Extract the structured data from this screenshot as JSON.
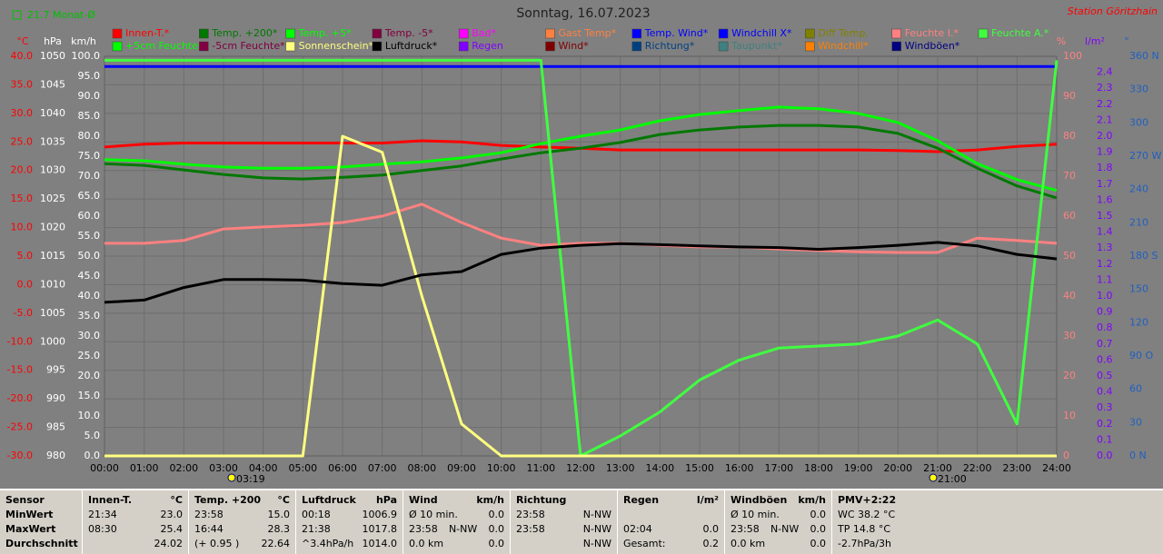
{
  "header": {
    "monthly_avg": "21.7 Monat-Ø",
    "station": "Station Göritzhain"
  },
  "chart_data": {
    "type": "line",
    "title": "Sonntag, 16.07.2023",
    "grid": true,
    "xlim": [
      0,
      24
    ],
    "xticks": [
      {
        "value": 0,
        "label": "00:00"
      },
      {
        "value": 1,
        "label": "01:00"
      },
      {
        "value": 2,
        "label": "02:00"
      },
      {
        "value": 3,
        "label": "03:00"
      },
      {
        "value": 4,
        "label": "04:00"
      },
      {
        "value": 5,
        "label": "05:00"
      },
      {
        "value": 6,
        "label": "06:00"
      },
      {
        "value": 7,
        "label": "07:00"
      },
      {
        "value": 8,
        "label": "08:00"
      },
      {
        "value": 9,
        "label": "09:00"
      },
      {
        "value": 10,
        "label": "10:00"
      },
      {
        "value": 11,
        "label": "11:00"
      },
      {
        "value": 12,
        "label": "12:00"
      },
      {
        "value": 13,
        "label": "13:00"
      },
      {
        "value": 14,
        "label": "14:00"
      },
      {
        "value": 15,
        "label": "15:00"
      },
      {
        "value": 16,
        "label": "16:00"
      },
      {
        "value": 17,
        "label": "17:00"
      },
      {
        "value": 18,
        "label": "18:00"
      },
      {
        "value": 19,
        "label": "19:00"
      },
      {
        "value": 20,
        "label": "20:00"
      },
      {
        "value": 21,
        "label": "21:00"
      },
      {
        "value": 22,
        "label": "22:00"
      },
      {
        "value": 23,
        "label": "23:00"
      },
      {
        "value": 24,
        "label": "24:00"
      }
    ],
    "x": [
      0,
      1,
      2,
      3,
      4,
      5,
      6,
      7,
      8,
      9,
      10,
      11,
      12,
      13,
      14,
      15,
      16,
      17,
      18,
      19,
      20,
      21,
      22,
      23,
      24
    ],
    "axes": [
      {
        "label": "°C",
        "side": "left",
        "color": "#ff0000",
        "lim": [
          -30,
          40
        ],
        "ticks": [
          {
            "value": 40,
            "label": "40.0"
          },
          {
            "value": 35,
            "label": "35.0"
          },
          {
            "value": 30,
            "label": "30.0"
          },
          {
            "value": 25,
            "label": "25.0"
          },
          {
            "value": 20,
            "label": "20.0"
          },
          {
            "value": 15,
            "label": "15.0"
          },
          {
            "value": 10,
            "label": "10.0"
          },
          {
            "value": 5,
            "label": "5.0"
          },
          {
            "value": 0,
            "label": "0.0"
          },
          {
            "value": -5,
            "label": "-5.0"
          },
          {
            "value": -10,
            "label": "-10.0"
          },
          {
            "value": -15,
            "label": "-15.0"
          },
          {
            "value": -20,
            "label": "-20.0"
          },
          {
            "value": -25,
            "label": "-25.0"
          },
          {
            "value": -30,
            "label": "-30.0"
          }
        ]
      },
      {
        "label": "hPa",
        "side": "left",
        "color": "#ffffff",
        "lim": [
          980,
          1050
        ],
        "ticks": [
          1050,
          1045,
          1040,
          1035,
          1030,
          1025,
          1020,
          1015,
          1010,
          1005,
          1000,
          995,
          990,
          985,
          980
        ]
      },
      {
        "label": "km/h",
        "side": "left",
        "color": "#ffffff",
        "lim": [
          0,
          100
        ],
        "ticks": [
          {
            "value": 100,
            "label": "100.0"
          },
          {
            "value": 95,
            "label": "95.0"
          },
          {
            "value": 90,
            "label": "90.0"
          },
          {
            "value": 85,
            "label": "85.0"
          },
          {
            "value": 80,
            "label": "80.0"
          },
          {
            "value": 75,
            "label": "75.0"
          },
          {
            "value": 70,
            "label": "70.0"
          },
          {
            "value": 65,
            "label": "65.0"
          },
          {
            "value": 60,
            "label": "60.0"
          },
          {
            "value": 55,
            "label": "55.0"
          },
          {
            "value": 50,
            "label": "50.0"
          },
          {
            "value": 45,
            "label": "45.0"
          },
          {
            "value": 40,
            "label": "40.0"
          },
          {
            "value": 35,
            "label": "35.0"
          },
          {
            "value": 30,
            "label": "30.0"
          },
          {
            "value": 25,
            "label": "25.0"
          },
          {
            "value": 20,
            "label": "20.0"
          },
          {
            "value": 15,
            "label": "15.0"
          },
          {
            "value": 10,
            "label": "10.0"
          },
          {
            "value": 5,
            "label": "5.0"
          },
          {
            "value": 0,
            "label": "0.0"
          }
        ]
      },
      {
        "label": "%",
        "side": "right",
        "color": "#ff8080",
        "lim": [
          0,
          100
        ],
        "ticks": [
          100,
          90,
          80,
          70,
          60,
          50,
          40,
          30,
          20,
          10,
          0
        ]
      },
      {
        "label": "l/m²",
        "side": "right",
        "color": "#8000ff",
        "lim": [
          0,
          2.5
        ],
        "ticks": [
          2.4,
          2.3,
          2.2,
          2.1,
          {
            "value": 2,
            "label": "2.0"
          },
          1.9,
          1.8,
          1.7,
          1.6,
          1.5,
          1.4,
          1.3,
          1.2,
          1.1,
          {
            "value": 1,
            "label": "1.0"
          },
          0.9,
          0.8,
          0.7,
          0.6,
          0.5,
          0.4,
          0.3,
          0.2,
          0.1,
          {
            "value": 0,
            "label": "0.0"
          }
        ]
      },
      {
        "label": "°",
        "side": "right",
        "color": "#2060c0",
        "lim": [
          0,
          360
        ],
        "ticks": [
          {
            "value": 360,
            "label": "360 N"
          },
          330,
          300,
          {
            "value": 270,
            "label": "270 W"
          },
          240,
          210,
          {
            "value": 180,
            "label": "180 S"
          },
          150,
          120,
          {
            "value": 90,
            "label": "90 O"
          },
          60,
          30,
          {
            "value": 0,
            "label": "0 N"
          }
        ]
      }
    ],
    "series": [
      {
        "name": "Innen-T.*",
        "color": "#ff0000",
        "axis": 0,
        "values": [
          24.1,
          24.6,
          24.8,
          24.8,
          24.8,
          24.8,
          24.8,
          24.8,
          25.2,
          25.0,
          24.4,
          24.1,
          23.9,
          23.6,
          23.6,
          23.6,
          23.6,
          23.6,
          23.6,
          23.6,
          23.5,
          23.3,
          23.6,
          24.2,
          24.6
        ]
      },
      {
        "name": "Temp. +200*",
        "color": "#007800",
        "axis": 0,
        "values": [
          21.2,
          20.9,
          20.1,
          19.3,
          18.7,
          18.5,
          18.8,
          19.2,
          20.0,
          20.8,
          22.0,
          23.1,
          23.9,
          24.9,
          26.3,
          27.1,
          27.6,
          27.9,
          27.9,
          27.6,
          26.5,
          23.9,
          20.4,
          17.3,
          15.2
        ]
      },
      {
        "name": "Temp. +5*",
        "color": "#00ff00",
        "axis": 0,
        "values": [
          21.9,
          21.7,
          21.1,
          20.6,
          20.4,
          20.4,
          20.6,
          21.1,
          21.5,
          22.2,
          23.1,
          24.7,
          26.0,
          27.1,
          28.7,
          29.8,
          30.5,
          31.1,
          30.8,
          30.0,
          28.4,
          25.2,
          21.2,
          18.4,
          16.5
        ]
      },
      {
        "name": "Temp. -5*",
        "color": "#800040"
      },
      {
        "name": "Bad*",
        "color": "#ff00ff"
      },
      {
        "name": "Gast Temp*",
        "color": "#ff8040"
      },
      {
        "name": "Temp. Wind*",
        "color": "#0000ff"
      },
      {
        "name": "Windchill X*",
        "color": "#0000ff",
        "axis": 0,
        "values": [
          38.2,
          38.2,
          38.2,
          38.2,
          38.2,
          38.2,
          38.2,
          38.2,
          38.2,
          38.2,
          38.2,
          38.2,
          38.2,
          38.2,
          38.2,
          38.2,
          38.2,
          38.2,
          38.2,
          38.2,
          38.2,
          38.2,
          38.2,
          38.2,
          38.2
        ]
      },
      {
        "name": "Diff Temp.",
        "color": "#808000"
      },
      {
        "name": "Feuchte I.*",
        "color": "#ff8080",
        "axis": 3,
        "values": [
          53.2,
          53.2,
          53.9,
          56.8,
          57.3,
          57.7,
          58.4,
          60,
          63,
          58.4,
          54.5,
          52.7,
          53.2,
          53.2,
          52.7,
          52.3,
          52.3,
          51.8,
          51.4,
          51.1,
          50.9,
          50.9,
          54.5,
          53.9,
          53.2
        ]
      },
      {
        "name": "Feuchte A.*",
        "color": "#40ff40",
        "axis": 3,
        "values": [
          99,
          99,
          99,
          99,
          99,
          99,
          99,
          99,
          99,
          99,
          99,
          99,
          0,
          5,
          11,
          19,
          24,
          27,
          27.5,
          28,
          30,
          34,
          28,
          8,
          99
        ]
      },
      {
        "name": "+5cm Feuchte*",
        "color": "#00ff00"
      },
      {
        "name": "-5cm Feuchte*",
        "color": "#800040"
      },
      {
        "name": "Sonnenschein*",
        "color": "#ffff80",
        "axis": 3,
        "values": [
          0,
          0,
          0,
          0,
          0,
          0,
          80,
          76,
          40,
          8,
          0,
          0,
          0,
          0,
          0,
          0,
          0,
          0,
          0,
          0,
          0,
          0,
          0,
          0,
          0
        ]
      },
      {
        "name": "Luftdruck*",
        "color": "#000000",
        "axis": 1,
        "values": [
          1006.9,
          1007.3,
          1009.5,
          1010.9,
          1010.9,
          1010.8,
          1010.2,
          1009.9,
          1011.7,
          1012.3,
          1015.3,
          1016.4,
          1016.9,
          1017.2,
          1017.0,
          1016.8,
          1016.6,
          1016.5,
          1016.2,
          1016.5,
          1016.9,
          1017.4,
          1016.8,
          1015.3,
          1014.5
        ]
      },
      {
        "name": "Regen",
        "color": "#8000ff"
      },
      {
        "name": "Wind*",
        "color": "#800000"
      },
      {
        "name": "Richtung*",
        "color": "#004080"
      },
      {
        "name": "Taupunkt*",
        "color": "#408080"
      },
      {
        "name": "Windchill*",
        "color": "#ff8000"
      },
      {
        "name": "Windböen*",
        "color": "#000080"
      }
    ],
    "annotations": [
      {
        "x": 3.32,
        "label": "03:19"
      },
      {
        "x": 21,
        "label": "21:00"
      }
    ]
  },
  "stats": {
    "row_labels": [
      "Sensor",
      "MinWert",
      "MaxWert",
      "Durchschnitt"
    ],
    "groups": [
      {
        "title": "Innen-T.",
        "unit": "°C",
        "rows": [
          [
            "21:34",
            "23.0"
          ],
          [
            "08:30",
            "25.4"
          ],
          [
            "24.02"
          ]
        ]
      },
      {
        "title": "Temp. +200",
        "unit": "°C",
        "rows": [
          [
            "23:58",
            "15.0"
          ],
          [
            "16:44",
            "28.3"
          ],
          [
            "(+ 0.95 )",
            "22.64"
          ]
        ]
      },
      {
        "title": "Luftdruck",
        "unit": "hPa",
        "rows": [
          [
            "00:18",
            "1006.9"
          ],
          [
            "21:38",
            "1017.8"
          ],
          [
            "^3.4hPa/h",
            "1014.0"
          ]
        ]
      },
      {
        "title": "Wind",
        "unit": "km/h",
        "rows": [
          [
            "Ø 10 min.",
            "0.0"
          ],
          [
            "23:58",
            "N-NW",
            "0.0"
          ],
          [
            "0.0 km",
            "0.0"
          ]
        ]
      },
      {
        "title": "Richtung",
        "rows": [
          [
            "23:58",
            "N-NW"
          ],
          [
            "23:58",
            "N-NW"
          ],
          [
            "N-NW"
          ]
        ]
      },
      {
        "title": "Regen",
        "unit": "l/m²",
        "rows": [
          [],
          [
            "02:04",
            "0.0"
          ],
          [
            "Gesamt:",
            "0.2"
          ]
        ]
      },
      {
        "title": "Windböen",
        "unit": "km/h",
        "rows": [
          [
            "Ø 10 min.",
            "0.0"
          ],
          [
            "23:58",
            "N-NW",
            "0.0"
          ],
          [
            "0.0 km",
            "0.0"
          ]
        ]
      },
      {
        "title": "PMV+2:22",
        "lines": [
          "WC 38.2 °C",
          "TP 14.8 °C",
          "-2.7hPa/3h"
        ]
      }
    ]
  }
}
